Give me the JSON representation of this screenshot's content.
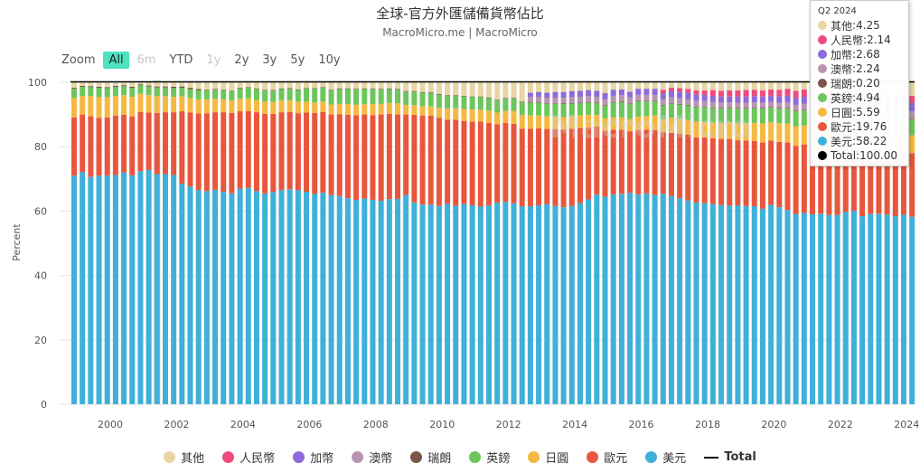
{
  "title": "全球-官方外匯儲備貨幣佔比",
  "subtitle": "MacroMicro.me | MacroMicro",
  "watermark": "MacroMicro",
  "zoom": {
    "label": "Zoom",
    "options": [
      "All",
      "6m",
      "YTD",
      "1y",
      "2y",
      "3y",
      "5y",
      "10y"
    ],
    "active": "All",
    "disabled": [
      "6m",
      "1y"
    ]
  },
  "tooltip": {
    "header": "Q2 2024",
    "rows": [
      {
        "name": "其他",
        "value": "4.25",
        "color": "#e8d5a3"
      },
      {
        "name": "人民幣",
        "value": "2.14",
        "color": "#ef4b7c"
      },
      {
        "name": "加幣",
        "value": "2.68",
        "color": "#8e6bd8"
      },
      {
        "name": "澳幣",
        "value": "2.24",
        "color": "#b994b0"
      },
      {
        "name": "瑞朗",
        "value": "0.20",
        "color": "#7a5548"
      },
      {
        "name": "英鎊",
        "value": "4.94",
        "color": "#6cc65c"
      },
      {
        "name": "日圓",
        "value": "5.59",
        "color": "#f5b942"
      },
      {
        "name": "歐元",
        "value": "19.76",
        "color": "#e8573d"
      },
      {
        "name": "美元",
        "value": "58.22",
        "color": "#3fb0d9"
      },
      {
        "name": "Total",
        "value": "100.00",
        "color": "#000000"
      }
    ]
  },
  "chart_data": {
    "type": "bar",
    "stacked": true,
    "frequency": "quarterly",
    "x_range": [
      "1999Q1",
      "2024Q2"
    ],
    "xticks": [
      "2000",
      "2002",
      "2004",
      "2006",
      "2008",
      "2010",
      "2012",
      "2014",
      "2016",
      "2018",
      "2020",
      "2022",
      "2024"
    ],
    "ylabel": "Percent",
    "ylim": [
      0,
      100
    ],
    "yticks": [
      "0",
      "20",
      "40",
      "60",
      "80",
      "100"
    ],
    "grid": true,
    "legend_placement": "bottom",
    "series": [
      {
        "name": "美元",
        "color": "#3fb0d9",
        "start": "1999Q1",
        "values": [
          71.0,
          72.1,
          70.6,
          71.0,
          71.1,
          71.2,
          72.0,
          71.1,
          72.4,
          72.8,
          71.5,
          71.5,
          71.2,
          68.5,
          67.6,
          66.5,
          66.2,
          66.6,
          66.0,
          65.5,
          67.0,
          67.2,
          66.2,
          65.5,
          65.9,
          66.5,
          66.8,
          66.5,
          66.0,
          65.3,
          65.7,
          65.0,
          64.7,
          64.0,
          63.5,
          63.9,
          63.5,
          63.2,
          63.7,
          63.8,
          65.0,
          62.7,
          62.0,
          62.0,
          61.6,
          62.2,
          61.7,
          62.2,
          61.8,
          61.4,
          61.7,
          62.6,
          62.9,
          62.4,
          61.5,
          61.5,
          61.8,
          62.2,
          61.6,
          61.2,
          61.6,
          62.5,
          63.6,
          65.1,
          64.5,
          65.2,
          65.4,
          65.7,
          65.2,
          65.5,
          65.0,
          65.4,
          64.7,
          64.0,
          63.3,
          62.7,
          62.5,
          62.2,
          61.9,
          61.7,
          61.8,
          61.6,
          61.5,
          60.7,
          61.9,
          61.2,
          60.3,
          59.0,
          59.4,
          59.0,
          59.2,
          58.8,
          58.8,
          59.7,
          60.1,
          58.4,
          59.1,
          59.2,
          58.9,
          58.4,
          58.9,
          58.22
        ]
      },
      {
        "name": "歐元",
        "color": "#e8573d",
        "start": "1999Q1",
        "values": [
          18.1,
          17.9,
          18.9,
          18.0,
          18.0,
          18.4,
          17.9,
          18.3,
          18.4,
          17.8,
          19.0,
          19.2,
          19.5,
          22.5,
          23.0,
          23.8,
          24.2,
          24.1,
          24.7,
          25.0,
          24.0,
          23.9,
          24.5,
          24.7,
          24.3,
          24.2,
          24.0,
          23.9,
          24.6,
          25.2,
          25.1,
          25.0,
          25.4,
          25.9,
          26.3,
          26.1,
          26.3,
          26.8,
          26.5,
          26.2,
          25.0,
          27.2,
          27.7,
          27.6,
          27.4,
          26.2,
          26.7,
          25.8,
          26.0,
          26.4,
          25.7,
          24.4,
          24.5,
          24.7,
          24.1,
          24.1,
          23.9,
          23.3,
          23.9,
          24.2,
          24.0,
          23.3,
          22.4,
          21.2,
          20.5,
          20.1,
          19.9,
          19.1,
          20.0,
          19.8,
          20.2,
          19.1,
          19.6,
          20.1,
          20.5,
          20.2,
          20.4,
          20.4,
          20.5,
          20.7,
          20.2,
          20.3,
          20.3,
          20.6,
          20.0,
          20.3,
          21.0,
          21.3,
          21.3,
          20.5,
          20.5,
          20.6,
          20.0,
          19.8,
          19.7,
          20.5,
          19.8,
          20.0,
          19.6,
          20.0,
          19.7,
          19.76
        ]
      },
      {
        "name": "日圓",
        "color": "#f5b942",
        "start": "1999Q1",
        "values": [
          6.0,
          5.8,
          6.2,
          6.4,
          6.3,
          6.2,
          6.1,
          6.1,
          5.6,
          5.4,
          5.2,
          5.0,
          4.8,
          4.6,
          4.5,
          4.4,
          4.3,
          4.2,
          4.0,
          3.9,
          3.9,
          3.9,
          3.8,
          3.8,
          3.7,
          3.7,
          3.6,
          3.6,
          3.4,
          3.3,
          3.2,
          3.1,
          3.2,
          3.3,
          3.2,
          3.2,
          3.4,
          3.3,
          3.4,
          3.5,
          3.0,
          3.0,
          2.9,
          2.9,
          3.1,
          3.4,
          3.5,
          3.7,
          3.7,
          3.7,
          3.8,
          3.6,
          3.7,
          4.0,
          4.2,
          4.1,
          4.0,
          3.9,
          3.8,
          3.8,
          3.9,
          3.9,
          3.9,
          3.5,
          3.8,
          3.8,
          3.8,
          3.8,
          4.1,
          4.2,
          4.5,
          4.0,
          4.7,
          4.6,
          4.5,
          4.9,
          4.8,
          4.9,
          5.0,
          5.2,
          5.3,
          5.4,
          5.6,
          5.9,
          5.7,
          5.8,
          5.9,
          6.0,
          5.9,
          5.8,
          5.8,
          5.5,
          5.4,
          5.3,
          5.2,
          5.5,
          5.4,
          5.4,
          5.5,
          5.7,
          5.7,
          5.59
        ]
      },
      {
        "name": "英鎊",
        "color": "#6cc65c",
        "start": "1999Q1",
        "values": [
          2.9,
          2.8,
          2.8,
          2.9,
          2.8,
          2.8,
          2.8,
          2.8,
          2.7,
          2.7,
          2.7,
          2.7,
          2.7,
          2.7,
          2.8,
          2.8,
          2.8,
          2.8,
          2.8,
          2.8,
          3.2,
          3.3,
          3.4,
          3.4,
          3.5,
          3.5,
          3.6,
          3.6,
          4.0,
          4.2,
          4.3,
          4.4,
          4.6,
          4.7,
          4.8,
          4.7,
          4.6,
          4.5,
          4.3,
          4.2,
          4.1,
          4.2,
          4.2,
          4.2,
          4.1,
          4.0,
          3.9,
          3.9,
          3.9,
          3.9,
          3.9,
          3.8,
          3.8,
          3.9,
          4.0,
          4.0,
          4.0,
          3.9,
          4.0,
          4.0,
          3.9,
          3.8,
          3.8,
          3.7,
          3.9,
          4.6,
          4.8,
          4.7,
          4.8,
          4.6,
          4.4,
          4.3,
          4.3,
          4.4,
          4.5,
          4.5,
          4.6,
          4.5,
          4.4,
          4.4,
          4.5,
          4.5,
          4.5,
          4.6,
          4.5,
          4.5,
          4.6,
          4.7,
          4.7,
          4.8,
          4.8,
          4.8,
          4.9,
          4.8,
          4.6,
          4.9,
          4.9,
          4.9,
          4.9,
          4.8,
          4.9,
          4.94
        ]
      },
      {
        "name": "瑞朗",
        "color": "#7a5548",
        "start": "1999Q1",
        "values": [
          0.3,
          0.3,
          0.3,
          0.3,
          0.3,
          0.3,
          0.3,
          0.3,
          0.3,
          0.3,
          0.3,
          0.3,
          0.4,
          0.4,
          0.4,
          0.4,
          0.2,
          0.2,
          0.2,
          0.2,
          0.2,
          0.2,
          0.2,
          0.2,
          0.2,
          0.2,
          0.2,
          0.2,
          0.2,
          0.2,
          0.2,
          0.2,
          0.2,
          0.2,
          0.2,
          0.2,
          0.2,
          0.2,
          0.2,
          0.2,
          0.2,
          0.2,
          0.2,
          0.2,
          0.2,
          0.2,
          0.2,
          0.2,
          0.2,
          0.2,
          0.2,
          0.2,
          0.2,
          0.2,
          0.2,
          0.2,
          0.2,
          0.2,
          0.2,
          0.2,
          0.2,
          0.2,
          0.2,
          0.2,
          0.2,
          0.2,
          0.2,
          0.2,
          0.2,
          0.2,
          0.2,
          0.2,
          0.2,
          0.2,
          0.2,
          0.2,
          0.2,
          0.2,
          0.2,
          0.2,
          0.2,
          0.2,
          0.2,
          0.2,
          0.2,
          0.2,
          0.2,
          0.2,
          0.2,
          0.2,
          0.2,
          0.2,
          0.2,
          0.2,
          0.2,
          0.2,
          0.2,
          0.2,
          0.2,
          0.2,
          0.2,
          0.2
        ]
      },
      {
        "name": "澳幣",
        "color": "#b994b0",
        "start": "2012Q4",
        "values": [
          1.5,
          1.6,
          1.7,
          1.7,
          1.8,
          1.8,
          1.8,
          1.8,
          1.8,
          1.9,
          1.9,
          1.9,
          1.8,
          1.8,
          1.8,
          1.8,
          1.7,
          1.8,
          1.8,
          1.8,
          1.8,
          1.7,
          1.7,
          1.7,
          1.6,
          1.7,
          1.7,
          1.7,
          1.7,
          1.6,
          1.7,
          1.8,
          1.8,
          1.8,
          1.8,
          1.8,
          1.8,
          1.8,
          1.9,
          2.0,
          2.0,
          2.0,
          2.0,
          2.1,
          2.1,
          2.2,
          2.24
        ]
      },
      {
        "name": "加幣",
        "color": "#8e6bd8",
        "start": "2012Q4",
        "values": [
          1.4,
          1.5,
          1.6,
          1.8,
          1.8,
          1.9,
          1.9,
          1.9,
          1.9,
          1.9,
          1.9,
          1.8,
          1.8,
          1.9,
          1.9,
          1.9,
          1.9,
          1.9,
          2.0,
          2.0,
          2.0,
          1.9,
          1.9,
          1.9,
          1.8,
          1.9,
          1.9,
          1.9,
          1.9,
          1.9,
          1.9,
          2.0,
          2.1,
          2.2,
          2.3,
          2.4,
          2.4,
          2.4,
          2.5,
          2.4,
          2.4,
          2.5,
          2.5,
          2.5,
          2.6,
          2.6,
          2.68
        ]
      },
      {
        "name": "人民幣",
        "color": "#ef4b7c",
        "start": "2016Q4",
        "values": [
          1.1,
          1.1,
          1.1,
          1.1,
          1.2,
          1.4,
          1.8,
          1.8,
          1.9,
          1.9,
          2.0,
          2.0,
          1.9,
          2.0,
          2.1,
          2.2,
          2.3,
          2.3,
          2.6,
          2.7,
          2.8,
          2.9,
          2.9,
          2.7,
          2.6,
          2.6,
          2.4,
          2.4,
          2.3,
          2.2,
          2.14
        ]
      },
      {
        "name": "其他",
        "color": "#e8d5a3",
        "start": "1999Q1",
        "remainder_of": 100
      }
    ],
    "total": {
      "name": "Total",
      "color": "#000000",
      "value": 100
    }
  }
}
